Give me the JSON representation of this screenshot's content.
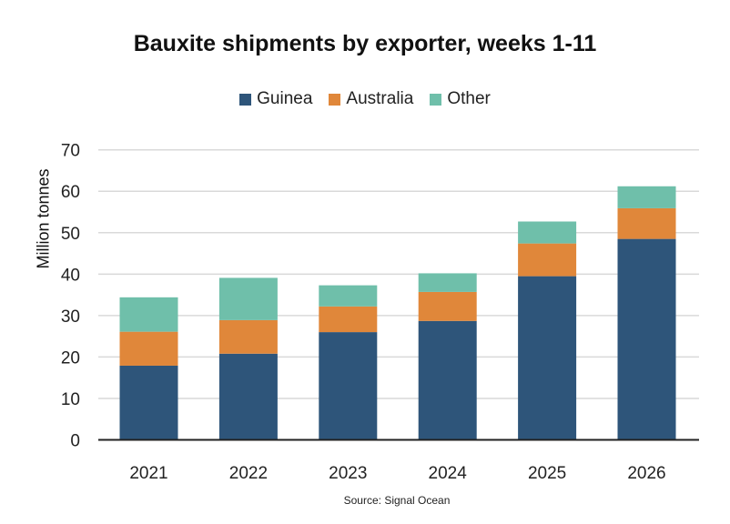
{
  "chart_data": {
    "type": "bar",
    "stacked": true,
    "title": "Bauxite shipments by exporter, weeks 1-11",
    "xlabel": "",
    "ylabel": "Million tonnes",
    "ylim": [
      0,
      70
    ],
    "yticks": [
      0,
      10,
      20,
      30,
      40,
      50,
      60,
      70
    ],
    "grid": true,
    "legend_position": "top-center",
    "categories": [
      "2021",
      "2022",
      "2023",
      "2024",
      "2025",
      "2026"
    ],
    "series": [
      {
        "name": "Guinea",
        "color": "#2e557a",
        "values": [
          17.9,
          20.8,
          26.0,
          28.7,
          39.5,
          48.5
        ]
      },
      {
        "name": "Australia",
        "color": "#e0873a",
        "values": [
          8.2,
          8.1,
          6.2,
          7.0,
          7.9,
          7.4
        ]
      },
      {
        "name": "Other",
        "color": "#6fbfaa",
        "values": [
          8.3,
          10.2,
          5.1,
          4.5,
          5.3,
          5.3
        ]
      }
    ],
    "source": "Source: Signal Ocean"
  }
}
